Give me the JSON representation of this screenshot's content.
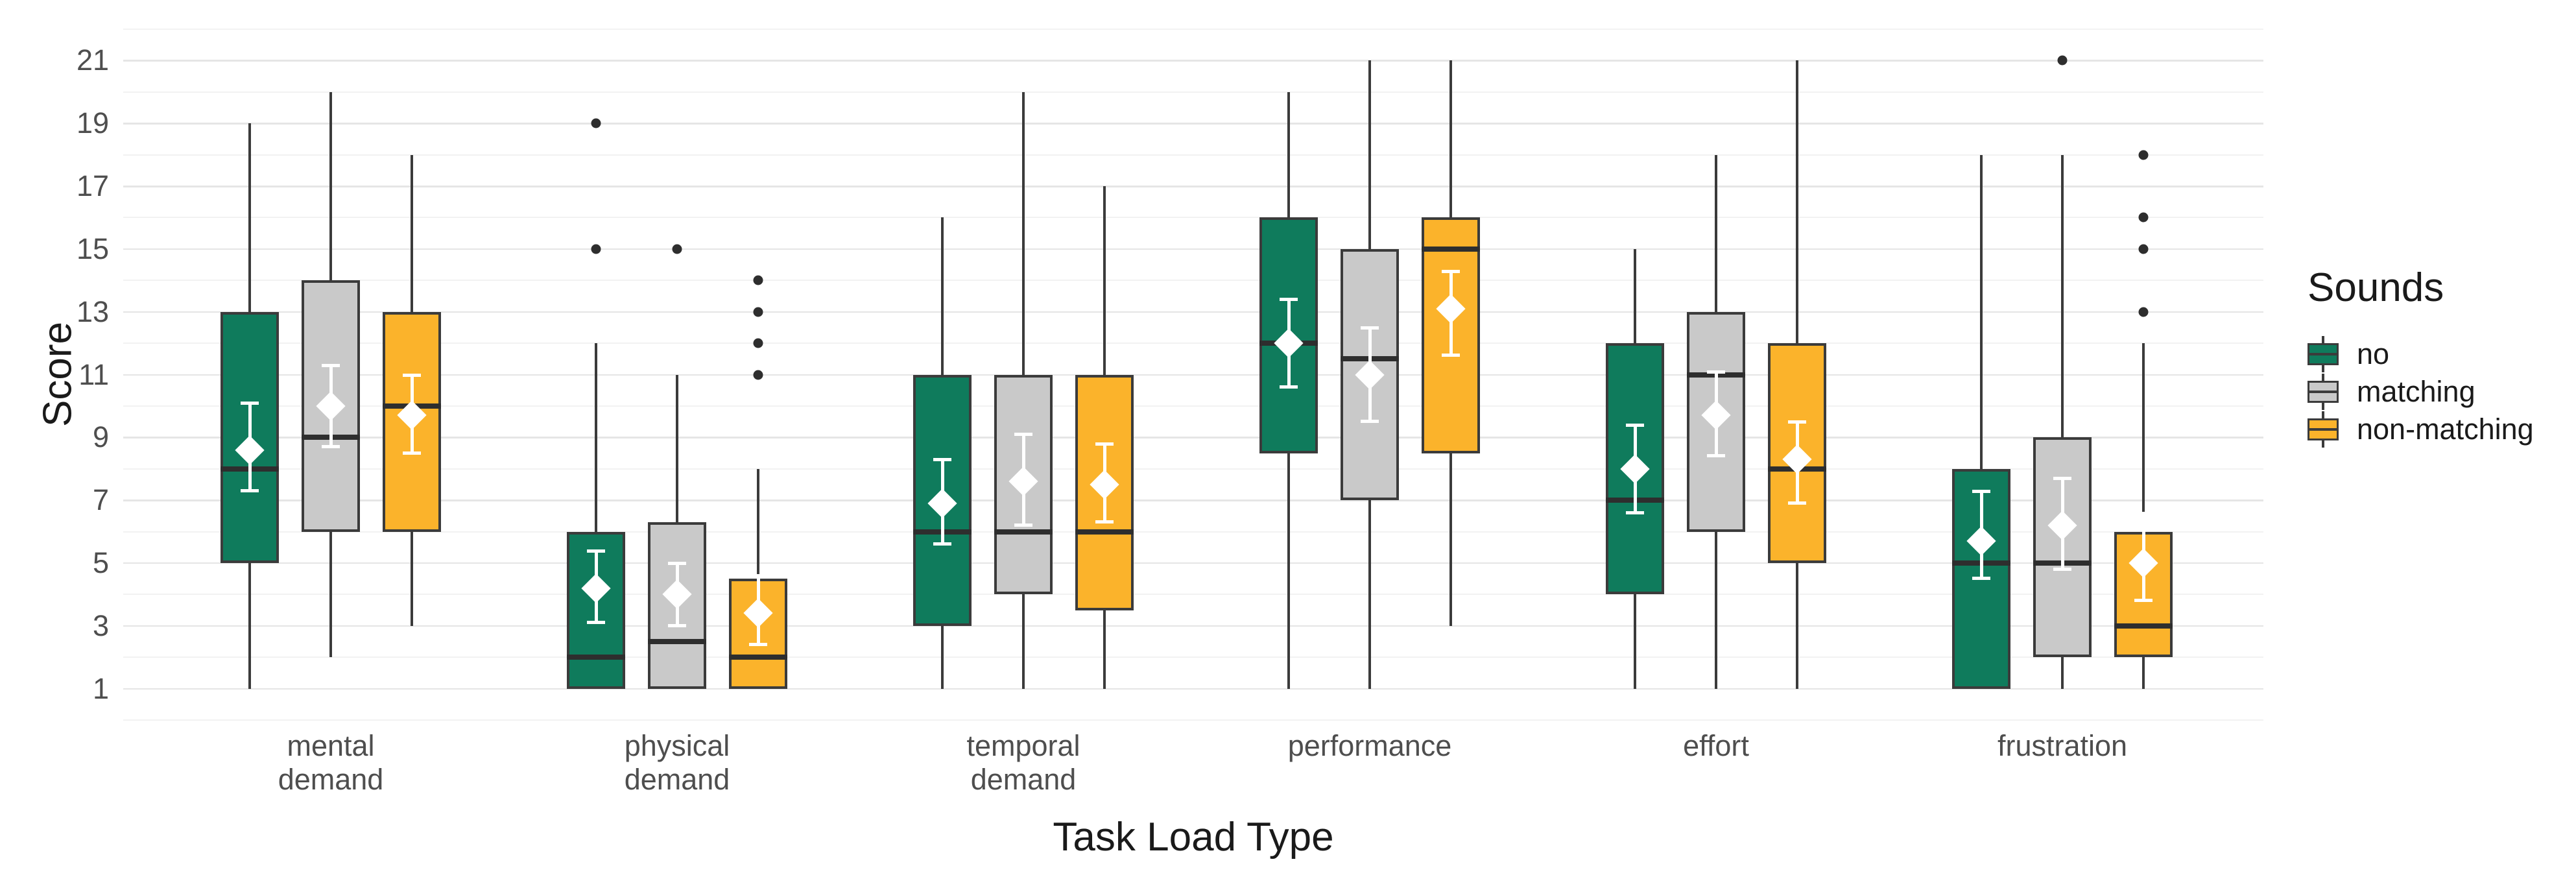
{
  "chart_data": {
    "type": "boxplot",
    "title": "",
    "xlabel": "Task Load Type",
    "ylabel": "Score",
    "ylim": [
      0,
      22
    ],
    "y_ticks": [
      1,
      3,
      5,
      7,
      9,
      11,
      13,
      15,
      17,
      19,
      21
    ],
    "grid": {
      "major_at": [
        1,
        3,
        5,
        7,
        9,
        11,
        13,
        15,
        17,
        19,
        21
      ],
      "minor_at": [
        0,
        2,
        4,
        6,
        8,
        10,
        12,
        14,
        16,
        18,
        20,
        22
      ],
      "visible": true
    },
    "categories": [
      {
        "label": "mental demand",
        "lines": [
          "mental",
          "demand"
        ]
      },
      {
        "label": "physical demand",
        "lines": [
          "physical",
          "demand"
        ]
      },
      {
        "label": "temporal demand",
        "lines": [
          "temporal",
          "demand"
        ]
      },
      {
        "label": "performance",
        "lines": [
          "performance"
        ]
      },
      {
        "label": "effort",
        "lines": [
          "effort"
        ]
      },
      {
        "label": "frustration",
        "lines": [
          "frustration"
        ]
      }
    ],
    "legend": {
      "title": "Sounds",
      "position": "right",
      "entries": [
        {
          "label": "no",
          "color": "#0F7B5C"
        },
        {
          "label": "matching",
          "color": "#C9C9C9"
        },
        {
          "label": "non-matching",
          "color": "#FBB32B"
        }
      ]
    },
    "series": [
      {
        "name": "no",
        "color": "#0F7B5C",
        "boxes": [
          {
            "category": "mental demand",
            "whisker_low": 1,
            "q1": 5,
            "median": 8,
            "q3": 13,
            "whisker_high": 19,
            "mean": 8.6,
            "ci": [
              7.3,
              10.1
            ],
            "outliers": []
          },
          {
            "category": "physical demand",
            "whisker_low": 1,
            "q1": 1,
            "median": 2,
            "q3": 6,
            "whisker_high": 12,
            "mean": 4.2,
            "ci": [
              3.1,
              5.4
            ],
            "outliers": [
              15,
              19
            ]
          },
          {
            "category": "temporal demand",
            "whisker_low": 1,
            "q1": 3,
            "median": 6,
            "q3": 11,
            "whisker_high": 16,
            "mean": 6.9,
            "ci": [
              5.6,
              8.3
            ],
            "outliers": []
          },
          {
            "category": "performance",
            "whisker_low": 1,
            "q1": 8.5,
            "median": 12,
            "q3": 16,
            "whisker_high": 20,
            "mean": 12.0,
            "ci": [
              10.6,
              13.4
            ],
            "outliers": []
          },
          {
            "category": "effort",
            "whisker_low": 1,
            "q1": 4,
            "median": 7,
            "q3": 12,
            "whisker_high": 15,
            "mean": 8.0,
            "ci": [
              6.6,
              9.4
            ],
            "outliers": []
          },
          {
            "category": "frustration",
            "whisker_low": 1,
            "q1": 1,
            "median": 5,
            "q3": 8,
            "whisker_high": 18,
            "mean": 5.7,
            "ci": [
              4.5,
              7.3
            ],
            "outliers": []
          }
        ]
      },
      {
        "name": "matching",
        "color": "#C9C9C9",
        "boxes": [
          {
            "category": "mental demand",
            "whisker_low": 2,
            "q1": 6,
            "median": 9,
            "q3": 14,
            "whisker_high": 20,
            "mean": 10.0,
            "ci": [
              8.7,
              11.3
            ],
            "outliers": []
          },
          {
            "category": "physical demand",
            "whisker_low": 1,
            "q1": 1,
            "median": 2.5,
            "q3": 6.3,
            "whisker_high": 11,
            "mean": 4.0,
            "ci": [
              3.0,
              5.0
            ],
            "outliers": [
              15
            ]
          },
          {
            "category": "temporal demand",
            "whisker_low": 1,
            "q1": 4,
            "median": 6,
            "q3": 11,
            "whisker_high": 20,
            "mean": 7.6,
            "ci": [
              6.2,
              9.1
            ],
            "outliers": []
          },
          {
            "category": "performance",
            "whisker_low": 1,
            "q1": 7,
            "median": 11.5,
            "q3": 15,
            "whisker_high": 21,
            "mean": 11.0,
            "ci": [
              9.5,
              12.5
            ],
            "outliers": []
          },
          {
            "category": "effort",
            "whisker_low": 1,
            "q1": 6,
            "median": 11,
            "q3": 13,
            "whisker_high": 18,
            "mean": 9.7,
            "ci": [
              8.4,
              11.1
            ],
            "outliers": []
          },
          {
            "category": "frustration",
            "whisker_low": 1,
            "q1": 2,
            "median": 5,
            "q3": 9,
            "whisker_high": 18,
            "mean": 6.2,
            "ci": [
              4.8,
              7.7
            ],
            "outliers": [
              21
            ]
          }
        ]
      },
      {
        "name": "non-matching",
        "color": "#FBB32B",
        "boxes": [
          {
            "category": "mental demand",
            "whisker_low": 3,
            "q1": 6,
            "median": 10,
            "q3": 13,
            "whisker_high": 18,
            "mean": 9.7,
            "ci": [
              8.5,
              11.0
            ],
            "outliers": []
          },
          {
            "category": "physical demand",
            "whisker_low": 1,
            "q1": 1,
            "median": 2,
            "q3": 4.5,
            "whisker_high": 8,
            "mean": 3.4,
            "ci": [
              2.4,
              4.6
            ],
            "outliers": [
              11,
              12,
              13,
              14
            ]
          },
          {
            "category": "temporal demand",
            "whisker_low": 1,
            "q1": 3.5,
            "median": 6,
            "q3": 11,
            "whisker_high": 17,
            "mean": 7.5,
            "ci": [
              6.3,
              8.8
            ],
            "outliers": []
          },
          {
            "category": "performance",
            "whisker_low": 3,
            "q1": 8.5,
            "median": 15,
            "q3": 16,
            "whisker_high": 21,
            "mean": 13.1,
            "ci": [
              11.6,
              14.3
            ],
            "outliers": []
          },
          {
            "category": "effort",
            "whisker_low": 1,
            "q1": 5,
            "median": 8,
            "q3": 12,
            "whisker_high": 21,
            "mean": 8.3,
            "ci": [
              6.9,
              9.5
            ],
            "outliers": []
          },
          {
            "category": "frustration",
            "whisker_low": 1,
            "q1": 2,
            "median": 3,
            "q3": 6,
            "whisker_high": 12,
            "mean": 5.0,
            "ci": [
              3.8,
              6.6
            ],
            "outliers": [
              13,
              15,
              16,
              18
            ]
          }
        ]
      }
    ],
    "colors": {
      "box_border": "#3B3B3B",
      "median_line": "#2E2E2E",
      "whisker": "#3B3B3B",
      "outlier": "#2E2E2E",
      "mean_marker": "#FFFFFF",
      "grid_major": "#E5E5E5",
      "grid_minor": "#F2F2F2",
      "background": "#FFFFFF",
      "tick_label": "#4E4E4E",
      "axis_title": "#1A1A1A"
    }
  }
}
